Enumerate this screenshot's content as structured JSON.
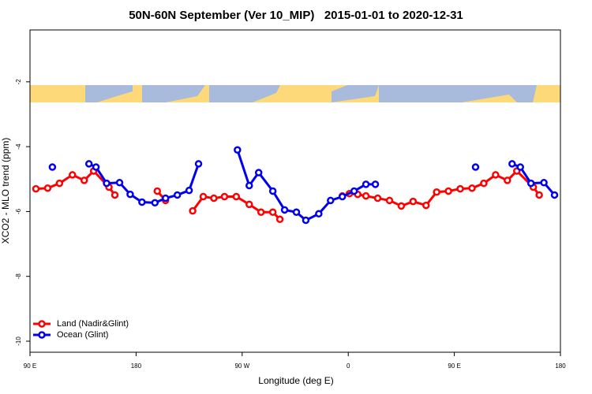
{
  "chart_data": {
    "type": "line",
    "title": "50N-60N September (Ver 10_MIP)   2015-01-01 to 2020-12-31",
    "x_label": "Longitude (deg E)",
    "y_label": "XCO2 - MLO trend (ppm)",
    "xlim": [
      90,
      540
    ],
    "xticks": [
      {
        "value": 90,
        "label": "90 E"
      },
      {
        "value": 180,
        "label": "180"
      },
      {
        "value": 270,
        "label": "90 W"
      },
      {
        "value": 360,
        "label": "0"
      },
      {
        "value": 450,
        "label": "90 E"
      },
      {
        "value": 540,
        "label": "180"
      }
    ],
    "ylim": [
      -10.34,
      -0.4
    ],
    "yticks": [
      -10,
      -8,
      -6,
      -4,
      -2
    ],
    "legend": "bottom-left",
    "series": [
      {
        "name": "Land (Nadir&Glint)",
        "color": "#ff0000",
        "x": [
          95,
          105,
          115,
          126,
          136,
          144,
          157,
          162,
          null,
          198,
          205,
          null,
          228,
          237,
          246,
          255,
          265,
          276,
          286,
          296,
          302,
          null,
          355,
          361,
          368,
          375,
          385,
          395,
          405,
          415,
          426,
          435,
          445,
          455,
          465,
          475,
          485,
          495,
          503,
          517,
          522
        ],
        "values": [
          -5.3,
          -5.28,
          -5.13,
          -4.87,
          -5.04,
          -4.75,
          -5.25,
          -5.49,
          null,
          -5.37,
          -5.66,
          null,
          -5.98,
          -5.54,
          -5.59,
          -5.54,
          -5.54,
          -5.78,
          -6.02,
          -6.02,
          -6.24,
          null,
          -5.52,
          -5.45,
          -5.47,
          -5.52,
          -5.59,
          -5.66,
          -5.83,
          -5.69,
          -5.81,
          -5.4,
          -5.37,
          -5.3,
          -5.28,
          -5.13,
          -4.87,
          -5.04,
          -4.75,
          -5.25,
          -5.49
        ]
      },
      {
        "name": "Ocean (Glint)",
        "color": "#0000ee",
        "x": [
          109,
          null,
          140,
          146,
          155,
          166,
          175,
          185,
          196,
          205,
          215,
          225,
          233,
          null,
          266,
          276,
          284,
          296,
          306,
          316,
          324,
          335,
          345,
          355,
          365,
          375,
          383,
          null,
          468,
          null,
          499,
          506,
          515,
          526,
          535
        ],
        "values": [
          -4.63,
          null,
          -4.53,
          -4.63,
          -5.13,
          -5.11,
          -5.47,
          -5.71,
          -5.73,
          -5.59,
          -5.49,
          -5.35,
          -4.53,
          null,
          -4.1,
          -5.2,
          -4.8,
          -5.37,
          -5.95,
          -6.02,
          -6.27,
          -6.07,
          -5.66,
          -5.54,
          -5.37,
          -5.16,
          -5.16,
          null,
          -4.63,
          null,
          -4.53,
          -4.63,
          -5.13,
          -5.11,
          -5.49
        ]
      }
    ]
  }
}
